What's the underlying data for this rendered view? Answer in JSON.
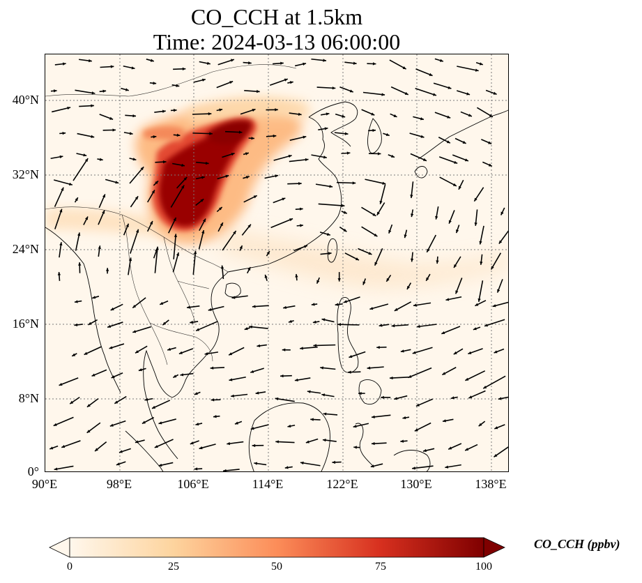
{
  "title": {
    "line1": "CO_CCH at 1.5km",
    "line2": "Time: 2024-03-13 06:00:00"
  },
  "map": {
    "lon_range": [
      90,
      140
    ],
    "lat_range": [
      0,
      45
    ],
    "lat_ticks": [
      "40°N",
      "32°N",
      "24°N",
      "16°N",
      "8°N",
      "0°"
    ],
    "lon_ticks": [
      "90°E",
      "98°E",
      "106°E",
      "114°E",
      "122°E",
      "130°E",
      "138°E"
    ],
    "gridlines": "dotted",
    "field": "CO concentration at 1.5 km with wind vectors",
    "high_region": "Sichuan Basin / central China (maximum ~100 ppbv)"
  },
  "colorbar": {
    "title": "CO_CCH (ppbv)",
    "ticks": [
      "0",
      "25",
      "50",
      "75",
      "100"
    ],
    "range": [
      0,
      100
    ],
    "colormap": "OrRd",
    "colors": [
      "#fff7ec",
      "#fdd49e",
      "#fc8d59",
      "#d7301f",
      "#7f0000"
    ]
  }
}
